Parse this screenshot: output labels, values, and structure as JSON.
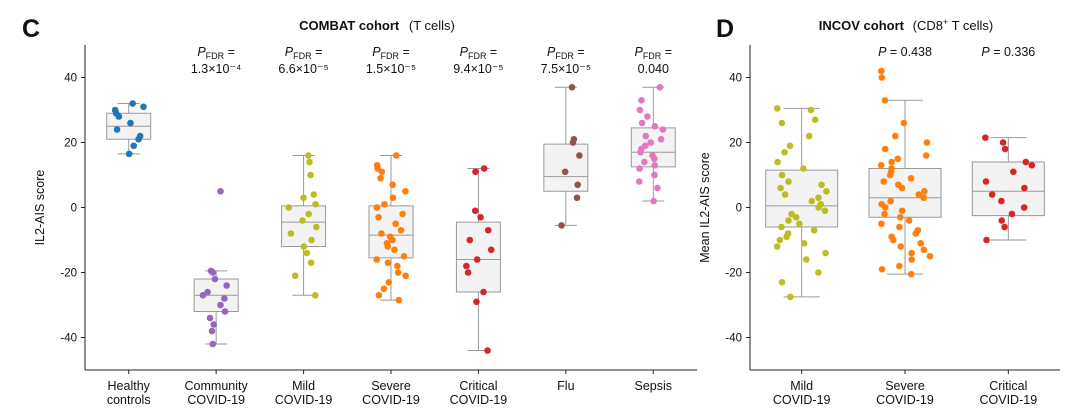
{
  "panels": {
    "c": {
      "letter": "C",
      "title_bold": "COMBAT cohort",
      "title_rest": "(T cells)"
    },
    "d": {
      "letter": "D",
      "title_bold": "INCOV cohort",
      "title_rest": "(CD8",
      "title_sup": "+",
      "title_end": " T cells)"
    }
  },
  "annotations": {
    "p_label": "P",
    "fdr_sub": "FDR",
    "eq": " ="
  },
  "chart_data": [
    {
      "id": "combat",
      "type": "box-strip",
      "title": "COMBAT cohort (T cells)",
      "ylabel": "IL2-AIS score",
      "ylim": [
        -50,
        50
      ],
      "yticks": [
        -40,
        -20,
        0,
        20,
        40
      ],
      "categories": [
        {
          "label": [
            "Healthy",
            "controls"
          ],
          "color": "#1f77b4",
          "q1": 21,
          "median": 25,
          "q3": 29,
          "whisker_low": 16.5,
          "whisker_high": 32,
          "p_line1": "",
          "p_line2": "",
          "points": [
            32,
            31,
            30,
            29,
            28,
            26,
            24,
            22,
            21,
            19,
            16.5
          ]
        },
        {
          "label": [
            "Community",
            "COVID-19"
          ],
          "color": "#9467bd",
          "q1": -32,
          "median": -27,
          "q3": -22,
          "whisker_low": -42,
          "whisker_high": -19.5,
          "p_line1": "FDR",
          "p_line2": "1.3×10⁻⁴",
          "points": [
            5,
            -19.5,
            -20,
            -22,
            -24,
            -26,
            -27,
            -28,
            -30,
            -32,
            -34,
            -36,
            -38,
            -42
          ]
        },
        {
          "label": [
            "Mild",
            "COVID-19"
          ],
          "color": "#bcbd22",
          "q1": -12,
          "median": -4.5,
          "q3": 0.5,
          "whisker_low": -27,
          "whisker_high": 16,
          "p_line1": "FDR",
          "p_line2": "6.6×10⁻⁵",
          "points": [
            16,
            14,
            10,
            4,
            3,
            1,
            0,
            -2,
            -4,
            -6,
            -8,
            -10,
            -12,
            -14,
            -17,
            -21,
            -27
          ]
        },
        {
          "label": [
            "Severe",
            "COVID-19"
          ],
          "color": "#ff7f0e",
          "q1": -15.5,
          "median": -8.5,
          "q3": 0.5,
          "whisker_low": -28.5,
          "whisker_high": 16,
          "p_line1": "FDR",
          "p_line2": "1.5×10⁻⁵",
          "points": [
            16,
            13,
            12,
            11,
            9,
            7,
            5,
            3,
            1,
            0,
            -2,
            -3,
            -5,
            -7,
            -8,
            -9,
            -10,
            -11,
            -12,
            -13,
            -15,
            -16,
            -17,
            -18,
            -20,
            -21,
            -23,
            -25,
            -27,
            -28.5
          ]
        },
        {
          "label": [
            "Critical",
            "COVID-19"
          ],
          "color": "#d62728",
          "q1": -26,
          "median": -16,
          "q3": -4.5,
          "whisker_low": -44,
          "whisker_high": 12,
          "p_line1": "FDR",
          "p_line2": "9.4×10⁻⁵",
          "points": [
            12,
            11,
            -1,
            -3,
            -7,
            -10,
            -13,
            -16,
            -18,
            -20,
            -26,
            -29,
            -44
          ]
        },
        {
          "label": [
            "Flu"
          ],
          "color": "#8c564b",
          "q1": 5,
          "median": 9.5,
          "q3": 19.5,
          "whisker_low": -5.5,
          "whisker_high": 37,
          "p_line1": "FDR",
          "p_line2": "7.5×10⁻⁵",
          "points": [
            37,
            21,
            20,
            16,
            11,
            7,
            3,
            -5.5
          ]
        },
        {
          "label": [
            "Sepsis"
          ],
          "color": "#e377c2",
          "q1": 12.5,
          "median": 17,
          "q3": 24.5,
          "whisker_low": 2,
          "whisker_high": 37,
          "p_line1": "",
          "p_line2": "0.040",
          "points": [
            37,
            33,
            30,
            28,
            26,
            25,
            24,
            22,
            21,
            20,
            19,
            18,
            17,
            16,
            15,
            14,
            13,
            12,
            10,
            8,
            6,
            2
          ]
        }
      ]
    },
    {
      "id": "incov",
      "type": "box-strip",
      "title": "INCOV cohort (CD8+ T cells)",
      "ylabel": "Mean IL2-AIS score",
      "ylim": [
        -50,
        50
      ],
      "yticks": [
        -40,
        -20,
        0,
        20,
        40
      ],
      "categories": [
        {
          "label": [
            "Mild",
            "COVID-19"
          ],
          "color": "#bcbd22",
          "q1": -6,
          "median": 0.5,
          "q3": 11.5,
          "whisker_low": -27.5,
          "whisker_high": 30.5,
          "p_text": "",
          "points": [
            30.5,
            30,
            27,
            26,
            22,
            19,
            17,
            14,
            12,
            10,
            8,
            7,
            6,
            5,
            4,
            3,
            2,
            1,
            0,
            -1,
            -2,
            -3,
            -4,
            -5,
            -6,
            -7,
            -8,
            -9,
            -10,
            -11,
            -12,
            -14,
            -16,
            -20,
            -23,
            -27.5
          ]
        },
        {
          "label": [
            "Severe",
            "COVID-19"
          ],
          "color": "#ff7f0e",
          "q1": -3,
          "median": 3,
          "q3": 12,
          "whisker_low": -20.5,
          "whisker_high": 33,
          "p_text": " = 0.438",
          "points": [
            42,
            40,
            33,
            26,
            22,
            20,
            18,
            16,
            15,
            14,
            13,
            12,
            11,
            10,
            9,
            8,
            7,
            6,
            5,
            4,
            3,
            2,
            1,
            0,
            -1,
            -2,
            -3,
            -4,
            -5,
            -6,
            -7,
            -8,
            -9,
            -10,
            -11,
            -12,
            -13,
            -14,
            -15,
            -16,
            -18,
            -19,
            -20.5
          ]
        },
        {
          "label": [
            "Critical",
            "COVID-19"
          ],
          "color": "#d62728",
          "q1": -2.5,
          "median": 5,
          "q3": 14,
          "whisker_low": -10,
          "whisker_high": 21.5,
          "p_text": " = 0.336",
          "points": [
            21.5,
            20,
            18,
            14,
            13,
            11,
            8,
            6,
            4,
            2,
            0,
            -2,
            -4,
            -6,
            -10
          ]
        }
      ]
    }
  ]
}
